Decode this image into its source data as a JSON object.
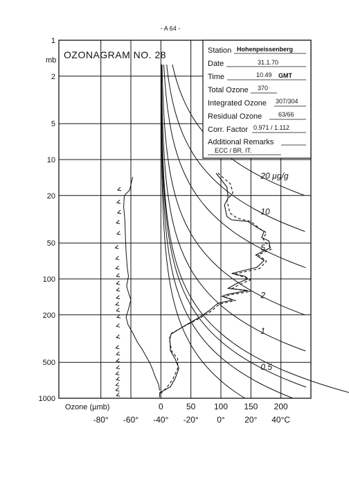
{
  "page_number": "- A 64 -",
  "title": "OZONAGRAM NO. 28",
  "info_box": {
    "station_label": "Station",
    "station": "Hohenpeissenberg",
    "date_label": "Date",
    "date": "31.1.70",
    "time_label": "Time",
    "time": "10.49",
    "time_unit": "GMT",
    "total_ozone_label": "Total Ozone",
    "total_ozone": "370",
    "integrated_ozone_label": "Integrated Ozone",
    "integrated_ozone": "307/304",
    "residual_ozone_label": "Residual Ozone",
    "residual_ozone": "63/66",
    "corr_factor_label": "Corr. Factor",
    "corr_factor": "0.971 / 1.112",
    "additional_remarks_label": "Additional Remarks",
    "additional_remarks": "ECC / BR. IT."
  },
  "chart_data": {
    "type": "line",
    "y_axis": {
      "unit_label": "mb",
      "scale": "log",
      "range": [
        1,
        1000
      ],
      "ticks": [
        "1",
        "2",
        "5",
        "10",
        "20",
        "50",
        "100",
        "200",
        "500",
        "1000"
      ],
      "tick_values": [
        1,
        2,
        5,
        10,
        20,
        50,
        100,
        200,
        500,
        1000
      ]
    },
    "x_axis_ozone": {
      "label": "Ozone (µmb)",
      "ticks": [
        "0",
        "50",
        "100",
        "150",
        "200"
      ],
      "tick_values": [
        0,
        50,
        100,
        150,
        200
      ],
      "range": [
        -170,
        250
      ]
    },
    "x_axis_temperature": {
      "ticks": [
        "-80°",
        "-60°",
        "-40°",
        "-20°",
        "0°",
        "20°",
        "40°C"
      ],
      "tick_values": [
        -80,
        -60,
        -40,
        -20,
        0,
        20,
        40
      ]
    },
    "mixing_ratio_labels": [
      {
        "text": "20 µg/g",
        "value": 20
      },
      {
        "text": "10",
        "value": 10
      },
      {
        "text": "5",
        "value": 5
      },
      {
        "text": "2",
        "value": 2
      },
      {
        "text": "1",
        "value": 1
      },
      {
        "text": "0.5",
        "value": 0.5
      }
    ],
    "series": [
      {
        "kind": "ozone_solid",
        "points": [
          [
            92,
            13
          ],
          [
            110,
            17
          ],
          [
            112,
            21
          ],
          [
            106,
            24
          ],
          [
            110,
            30
          ],
          [
            118,
            32
          ],
          [
            145,
            33
          ],
          [
            160,
            37
          ],
          [
            172,
            40
          ],
          [
            168,
            45
          ],
          [
            180,
            48
          ],
          [
            182,
            55
          ],
          [
            158,
            63
          ],
          [
            172,
            70
          ],
          [
            160,
            80
          ],
          [
            118,
            90
          ],
          [
            140,
            95
          ],
          [
            145,
            100
          ],
          [
            125,
            110
          ],
          [
            112,
            120
          ],
          [
            145,
            125
          ],
          [
            110,
            135
          ],
          [
            102,
            140
          ],
          [
            120,
            150
          ],
          [
            95,
            160
          ],
          [
            80,
            185
          ],
          [
            64,
            210
          ],
          [
            38,
            250
          ],
          [
            17,
            290
          ],
          [
            15,
            320
          ],
          [
            16,
            400
          ],
          [
            24,
            470
          ],
          [
            30,
            560
          ],
          [
            24,
            680
          ],
          [
            16,
            800
          ],
          [
            -2,
            900
          ],
          [
            -2,
            980
          ]
        ]
      },
      {
        "kind": "ozone_dashed",
        "points": [
          [
            95,
            13
          ],
          [
            116,
            16
          ],
          [
            120,
            19
          ],
          [
            110,
            22
          ],
          [
            115,
            28
          ],
          [
            127,
            31
          ],
          [
            150,
            33
          ],
          [
            165,
            38
          ],
          [
            176,
            41
          ],
          [
            170,
            46
          ],
          [
            175,
            50
          ],
          [
            185,
            56
          ],
          [
            162,
            63
          ],
          [
            176,
            71
          ],
          [
            164,
            82
          ],
          [
            122,
            91
          ],
          [
            138,
            96
          ],
          [
            149,
            102
          ],
          [
            130,
            112
          ],
          [
            118,
            121
          ],
          [
            150,
            127
          ],
          [
            115,
            136
          ],
          [
            106,
            141
          ],
          [
            124,
            152
          ],
          [
            98,
            162
          ],
          [
            84,
            186
          ],
          [
            66,
            212
          ],
          [
            40,
            248
          ],
          [
            18,
            285
          ],
          [
            14,
            318
          ],
          [
            18,
            402
          ],
          [
            28,
            466
          ],
          [
            28,
            560
          ],
          [
            20,
            690
          ],
          [
            10,
            810
          ],
          [
            -2,
            930
          ]
        ]
      },
      {
        "kind": "temperature",
        "points": [
          [
            -47,
            14
          ],
          [
            -52,
            18
          ],
          [
            -61,
            20
          ],
          [
            -62,
            25
          ],
          [
            -60,
            32
          ],
          [
            -59,
            45
          ],
          [
            -58,
            60
          ],
          [
            -56,
            80
          ],
          [
            -54,
            95
          ],
          [
            -57,
            115
          ],
          [
            -54,
            130
          ],
          [
            -50,
            150
          ],
          [
            -54,
            180
          ],
          [
            -58,
            210
          ],
          [
            -55,
            240
          ],
          [
            -46,
            290
          ],
          [
            -39,
            340
          ],
          [
            -31,
            390
          ],
          [
            -24,
            450
          ],
          [
            -18,
            510
          ],
          [
            -14,
            570
          ],
          [
            -10,
            650
          ],
          [
            -4,
            760
          ],
          [
            -2,
            860
          ]
        ]
      },
      {
        "kind": "humidity_marks",
        "points": [
          [
            -72,
            18
          ],
          [
            -73,
            23
          ],
          [
            -72,
            28
          ],
          [
            -74,
            34
          ],
          [
            -73,
            42
          ],
          [
            -76,
            55
          ],
          [
            -75,
            68
          ],
          [
            -75,
            82
          ],
          [
            -74,
            95
          ],
          [
            -74,
            110
          ],
          [
            -74,
            125
          ],
          [
            -74,
            145
          ],
          [
            -75,
            165
          ],
          [
            -74,
            185
          ],
          [
            -73,
            210
          ],
          [
            -74,
            250
          ],
          [
            -74,
            310
          ],
          [
            -75,
            380
          ],
          [
            -74,
            430
          ],
          [
            -74,
            490
          ],
          [
            -74,
            560
          ],
          [
            -75,
            630
          ],
          [
            -74,
            700
          ],
          [
            -75,
            780
          ],
          [
            -75,
            860
          ],
          [
            -74,
            950
          ]
        ]
      }
    ]
  }
}
